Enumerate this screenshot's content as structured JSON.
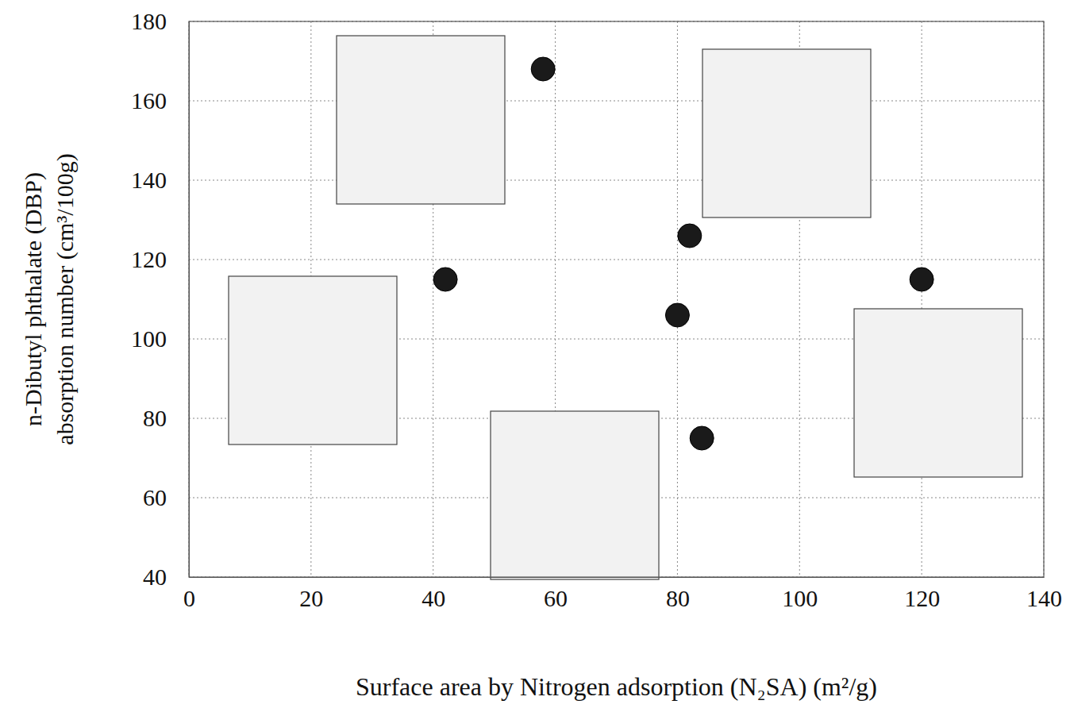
{
  "chart_data": {
    "type": "scatter",
    "x_label": "Surface area by Nitrogen adsorption (N₂SA) (m²/g)",
    "y_label": [
      "n-Dibutyl phthalate (DBP)",
      "absorption number (cm³/100g)"
    ],
    "x": [
      42,
      58,
      80,
      82,
      84,
      120
    ],
    "values": [
      115,
      168,
      106,
      126,
      75,
      115
    ],
    "color": "#1a1a1a",
    "marker": "circle",
    "xlim": [
      0,
      140
    ],
    "ylim": [
      40,
      180
    ],
    "xticks": [
      0,
      20,
      40,
      60,
      80,
      100,
      120,
      140
    ],
    "yticks": [
      40,
      60,
      80,
      100,
      120,
      140,
      160,
      180
    ],
    "grid": true
  }
}
